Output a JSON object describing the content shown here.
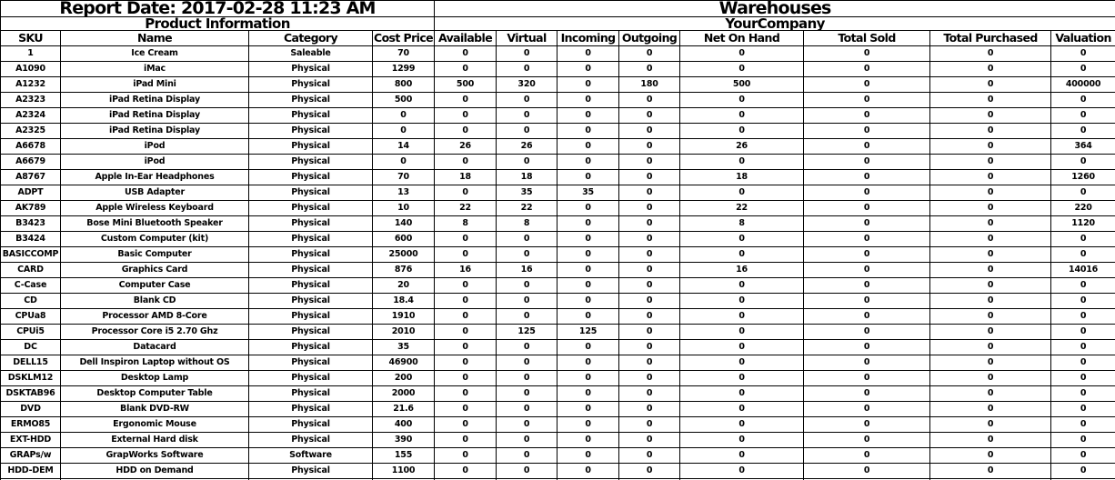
{
  "header": {
    "report_date": "Report Date: 2017-02-28 11:23 AM",
    "warehouses_title": "Warehouses",
    "product_info_title": "Product Information",
    "company_title": "YourCompany"
  },
  "table": {
    "columns": [
      "SKU",
      "Name",
      "Category",
      "Cost Price",
      "Available",
      "Virtual",
      "Incoming",
      "Outgoing",
      "Net On Hand",
      "Total Sold",
      "Total Purchased",
      "Valuation"
    ],
    "rows": [
      [
        "1",
        "Ice Cream",
        "Saleable",
        "70",
        "0",
        "0",
        "0",
        "0",
        "0",
        "0",
        "0",
        "0"
      ],
      [
        "A1090",
        "iMac",
        "Physical",
        "1299",
        "0",
        "0",
        "0",
        "0",
        "0",
        "0",
        "0",
        "0"
      ],
      [
        "A1232",
        "iPad Mini",
        "Physical",
        "800",
        "500",
        "320",
        "0",
        "180",
        "500",
        "0",
        "0",
        "400000"
      ],
      [
        "A2323",
        "iPad Retina Display",
        "Physical",
        "500",
        "0",
        "0",
        "0",
        "0",
        "0",
        "0",
        "0",
        "0"
      ],
      [
        "A2324",
        "iPad Retina Display",
        "Physical",
        "0",
        "0",
        "0",
        "0",
        "0",
        "0",
        "0",
        "0",
        "0"
      ],
      [
        "A2325",
        "iPad Retina Display",
        "Physical",
        "0",
        "0",
        "0",
        "0",
        "0",
        "0",
        "0",
        "0",
        "0"
      ],
      [
        "A6678",
        "iPod",
        "Physical",
        "14",
        "26",
        "26",
        "0",
        "0",
        "26",
        "0",
        "0",
        "364"
      ],
      [
        "A6679",
        "iPod",
        "Physical",
        "0",
        "0",
        "0",
        "0",
        "0",
        "0",
        "0",
        "0",
        "0"
      ],
      [
        "A8767",
        "Apple In-Ear Headphones",
        "Physical",
        "70",
        "18",
        "18",
        "0",
        "0",
        "18",
        "0",
        "0",
        "1260"
      ],
      [
        "ADPT",
        "USB Adapter",
        "Physical",
        "13",
        "0",
        "35",
        "35",
        "0",
        "0",
        "0",
        "0",
        "0"
      ],
      [
        "AK789",
        "Apple Wireless Keyboard",
        "Physical",
        "10",
        "22",
        "22",
        "0",
        "0",
        "22",
        "0",
        "0",
        "220"
      ],
      [
        "B3423",
        "Bose Mini Bluetooth Speaker",
        "Physical",
        "140",
        "8",
        "8",
        "0",
        "0",
        "8",
        "0",
        "0",
        "1120"
      ],
      [
        "B3424",
        "Custom Computer (kit)",
        "Physical",
        "600",
        "0",
        "0",
        "0",
        "0",
        "0",
        "0",
        "0",
        "0"
      ],
      [
        "BASICCOMP",
        "Basic Computer",
        "Physical",
        "25000",
        "0",
        "0",
        "0",
        "0",
        "0",
        "0",
        "0",
        "0"
      ],
      [
        "CARD",
        "Graphics Card",
        "Physical",
        "876",
        "16",
        "16",
        "0",
        "0",
        "16",
        "0",
        "0",
        "14016"
      ],
      [
        "C-Case",
        "Computer Case",
        "Physical",
        "20",
        "0",
        "0",
        "0",
        "0",
        "0",
        "0",
        "0",
        "0"
      ],
      [
        "CD",
        "Blank CD",
        "Physical",
        "18.4",
        "0",
        "0",
        "0",
        "0",
        "0",
        "0",
        "0",
        "0"
      ],
      [
        "CPUa8",
        "Processor AMD 8-Core",
        "Physical",
        "1910",
        "0",
        "0",
        "0",
        "0",
        "0",
        "0",
        "0",
        "0"
      ],
      [
        "CPUi5",
        "Processor Core i5 2.70 Ghz",
        "Physical",
        "2010",
        "0",
        "125",
        "125",
        "0",
        "0",
        "0",
        "0",
        "0"
      ],
      [
        "DC",
        "Datacard",
        "Physical",
        "35",
        "0",
        "0",
        "0",
        "0",
        "0",
        "0",
        "0",
        "0"
      ],
      [
        "DELL15",
        "Dell Inspiron Laptop without OS",
        "Physical",
        "46900",
        "0",
        "0",
        "0",
        "0",
        "0",
        "0",
        "0",
        "0"
      ],
      [
        "DSKLM12",
        "Desktop Lamp",
        "Physical",
        "200",
        "0",
        "0",
        "0",
        "0",
        "0",
        "0",
        "0",
        "0"
      ],
      [
        "DSKTAB96",
        "Desktop Computer Table",
        "Physical",
        "2000",
        "0",
        "0",
        "0",
        "0",
        "0",
        "0",
        "0",
        "0"
      ],
      [
        "DVD",
        "Blank DVD-RW",
        "Physical",
        "21.6",
        "0",
        "0",
        "0",
        "0",
        "0",
        "0",
        "0",
        "0"
      ],
      [
        "ERMO85",
        "Ergonomic Mouse",
        "Physical",
        "400",
        "0",
        "0",
        "0",
        "0",
        "0",
        "0",
        "0",
        "0"
      ],
      [
        "EXT-HDD",
        "External Hard disk",
        "Physical",
        "390",
        "0",
        "0",
        "0",
        "0",
        "0",
        "0",
        "0",
        "0"
      ],
      [
        "GRAPs/w",
        "GrapWorks Software",
        "Software",
        "155",
        "0",
        "0",
        "0",
        "0",
        "0",
        "0",
        "0",
        "0"
      ],
      [
        "HDD-DEM",
        "HDD on Demand",
        "Physical",
        "1100",
        "0",
        "0",
        "0",
        "0",
        "0",
        "0",
        "0",
        "0"
      ]
    ]
  },
  "colors": {
    "text": "#000000",
    "border": "#000000",
    "background": "#ffffff"
  }
}
